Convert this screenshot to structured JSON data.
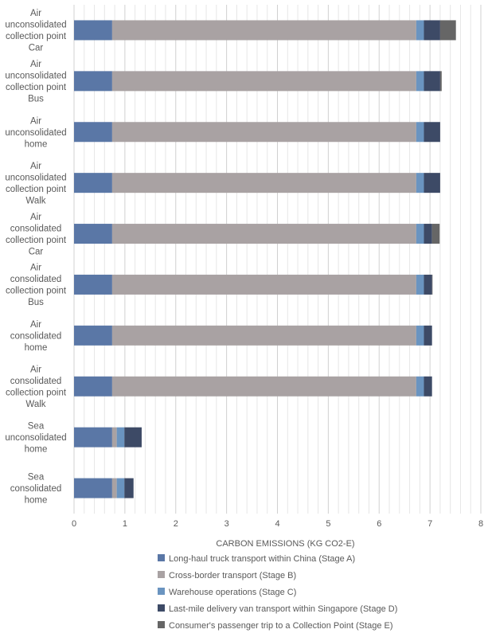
{
  "chart_data": {
    "type": "bar",
    "orientation": "horizontal",
    "stacked": true,
    "title": "",
    "xlabel": "CARBON EMISSIONS (KG CO2-E)",
    "ylabel": "",
    "xlim": [
      0,
      8
    ],
    "x_ticks": [
      "0",
      "1",
      "2",
      "3",
      "4",
      "5",
      "6",
      "7",
      "8"
    ],
    "minor_gridlines_step": 0.2,
    "grid": true,
    "legend_position": "bottom",
    "categories": [
      [
        "Air",
        "unconsolidated",
        "collection point",
        "Car"
      ],
      [
        "Air",
        "unconsolidated",
        "collection point",
        "Bus"
      ],
      [
        "Air",
        "unconsolidated",
        "home"
      ],
      [
        "Air",
        "unconsolidated",
        "collection point",
        "Walk"
      ],
      [
        "Air",
        "consolidated",
        "collection point",
        "Car"
      ],
      [
        "Air",
        "consolidated",
        "collection point",
        "Bus"
      ],
      [
        "Air",
        "consolidated",
        "home"
      ],
      [
        "Air",
        "consolidated",
        "collection point",
        "Walk"
      ],
      [
        "Sea",
        "unconsolidated",
        "home"
      ],
      [
        "Sea",
        "consolidated",
        "home"
      ]
    ],
    "series": [
      {
        "name": "Long-haul truck transport within China (Stage A)",
        "color": "#5a77a6",
        "values": [
          0.75,
          0.75,
          0.75,
          0.75,
          0.75,
          0.75,
          0.75,
          0.75,
          0.75,
          0.75
        ]
      },
      {
        "name": "Cross-border transport (Stage B)",
        "color": "#a9a2a3",
        "values": [
          5.98,
          5.98,
          5.98,
          5.98,
          5.98,
          5.98,
          5.98,
          5.98,
          0.09,
          0.09
        ]
      },
      {
        "name": "Warehouse operations (Stage C)",
        "color": "#6a94c0",
        "values": [
          0.15,
          0.15,
          0.15,
          0.15,
          0.15,
          0.15,
          0.15,
          0.15,
          0.15,
          0.15
        ]
      },
      {
        "name": "Last-mile delivery van transport within Singapore (Stage D)",
        "color": "#3d4a66",
        "values": [
          0.32,
          0.32,
          0.32,
          0.32,
          0.16,
          0.16,
          0.16,
          0.16,
          0.34,
          0.18
        ]
      },
      {
        "name": "Consumer's passenger trip to a Collection Point (Stage E)",
        "color": "#666666",
        "values": [
          0.31,
          0.03,
          0.0,
          0.0,
          0.15,
          0.01,
          0.0,
          0.0,
          0.0,
          0.0
        ]
      }
    ]
  }
}
